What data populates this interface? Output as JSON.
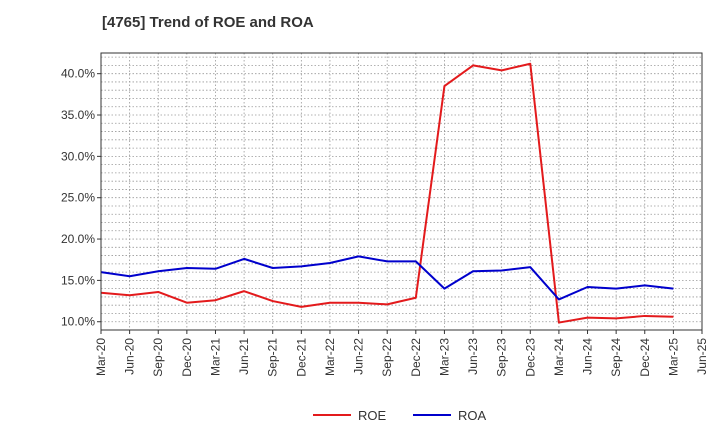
{
  "chart_data": {
    "type": "line",
    "title": "[4765]  Trend of ROE and ROA",
    "xlabel": "",
    "ylabel": "",
    "categories": [
      "Mar-20",
      "Jun-20",
      "Sep-20",
      "Dec-20",
      "Mar-21",
      "Jun-21",
      "Sep-21",
      "Dec-21",
      "Mar-22",
      "Jun-22",
      "Sep-22",
      "Dec-22",
      "Mar-23",
      "Jun-23",
      "Sep-23",
      "Dec-23",
      "Mar-24",
      "Jun-24",
      "Sep-24",
      "Dec-24",
      "Mar-25",
      "Jun-25"
    ],
    "x_tick_labels": [
      "Mar-20",
      "Jun-20",
      "Sep-20",
      "Dec-20",
      "Mar-21",
      "Jun-21",
      "Sep-21",
      "Dec-21",
      "Mar-22",
      "Jun-22",
      "Sep-22",
      "Dec-22",
      "Mar-23",
      "Jun-23",
      "Sep-23",
      "Dec-23",
      "Mar-24",
      "Jun-24",
      "Sep-24",
      "Dec-24",
      "Mar-25",
      "Jun-25"
    ],
    "y_ticks": [
      10,
      15,
      20,
      25,
      30,
      35,
      40
    ],
    "y_tick_labels": [
      "10.0%",
      "15.0%",
      "20.0%",
      "25.0%",
      "30.0%",
      "35.0%",
      "40.0%"
    ],
    "ylim": [
      9,
      42.5
    ],
    "grid": true,
    "legend_position": "bottom-center",
    "series": [
      {
        "name": "ROE",
        "color": "#e31a1c",
        "values": [
          13.5,
          13.2,
          13.6,
          12.3,
          12.6,
          13.7,
          12.5,
          11.8,
          12.3,
          12.3,
          12.1,
          12.9,
          38.5,
          41.0,
          40.4,
          41.2,
          9.9,
          10.5,
          10.4,
          10.7,
          10.6,
          null
        ]
      },
      {
        "name": "ROA",
        "color": "#0000cc",
        "values": [
          16.0,
          15.5,
          16.1,
          16.5,
          16.4,
          17.6,
          16.5,
          16.7,
          17.1,
          17.9,
          17.3,
          17.3,
          14.0,
          16.1,
          16.2,
          16.6,
          12.7,
          14.2,
          14.0,
          14.4,
          14.0,
          null
        ]
      }
    ]
  }
}
